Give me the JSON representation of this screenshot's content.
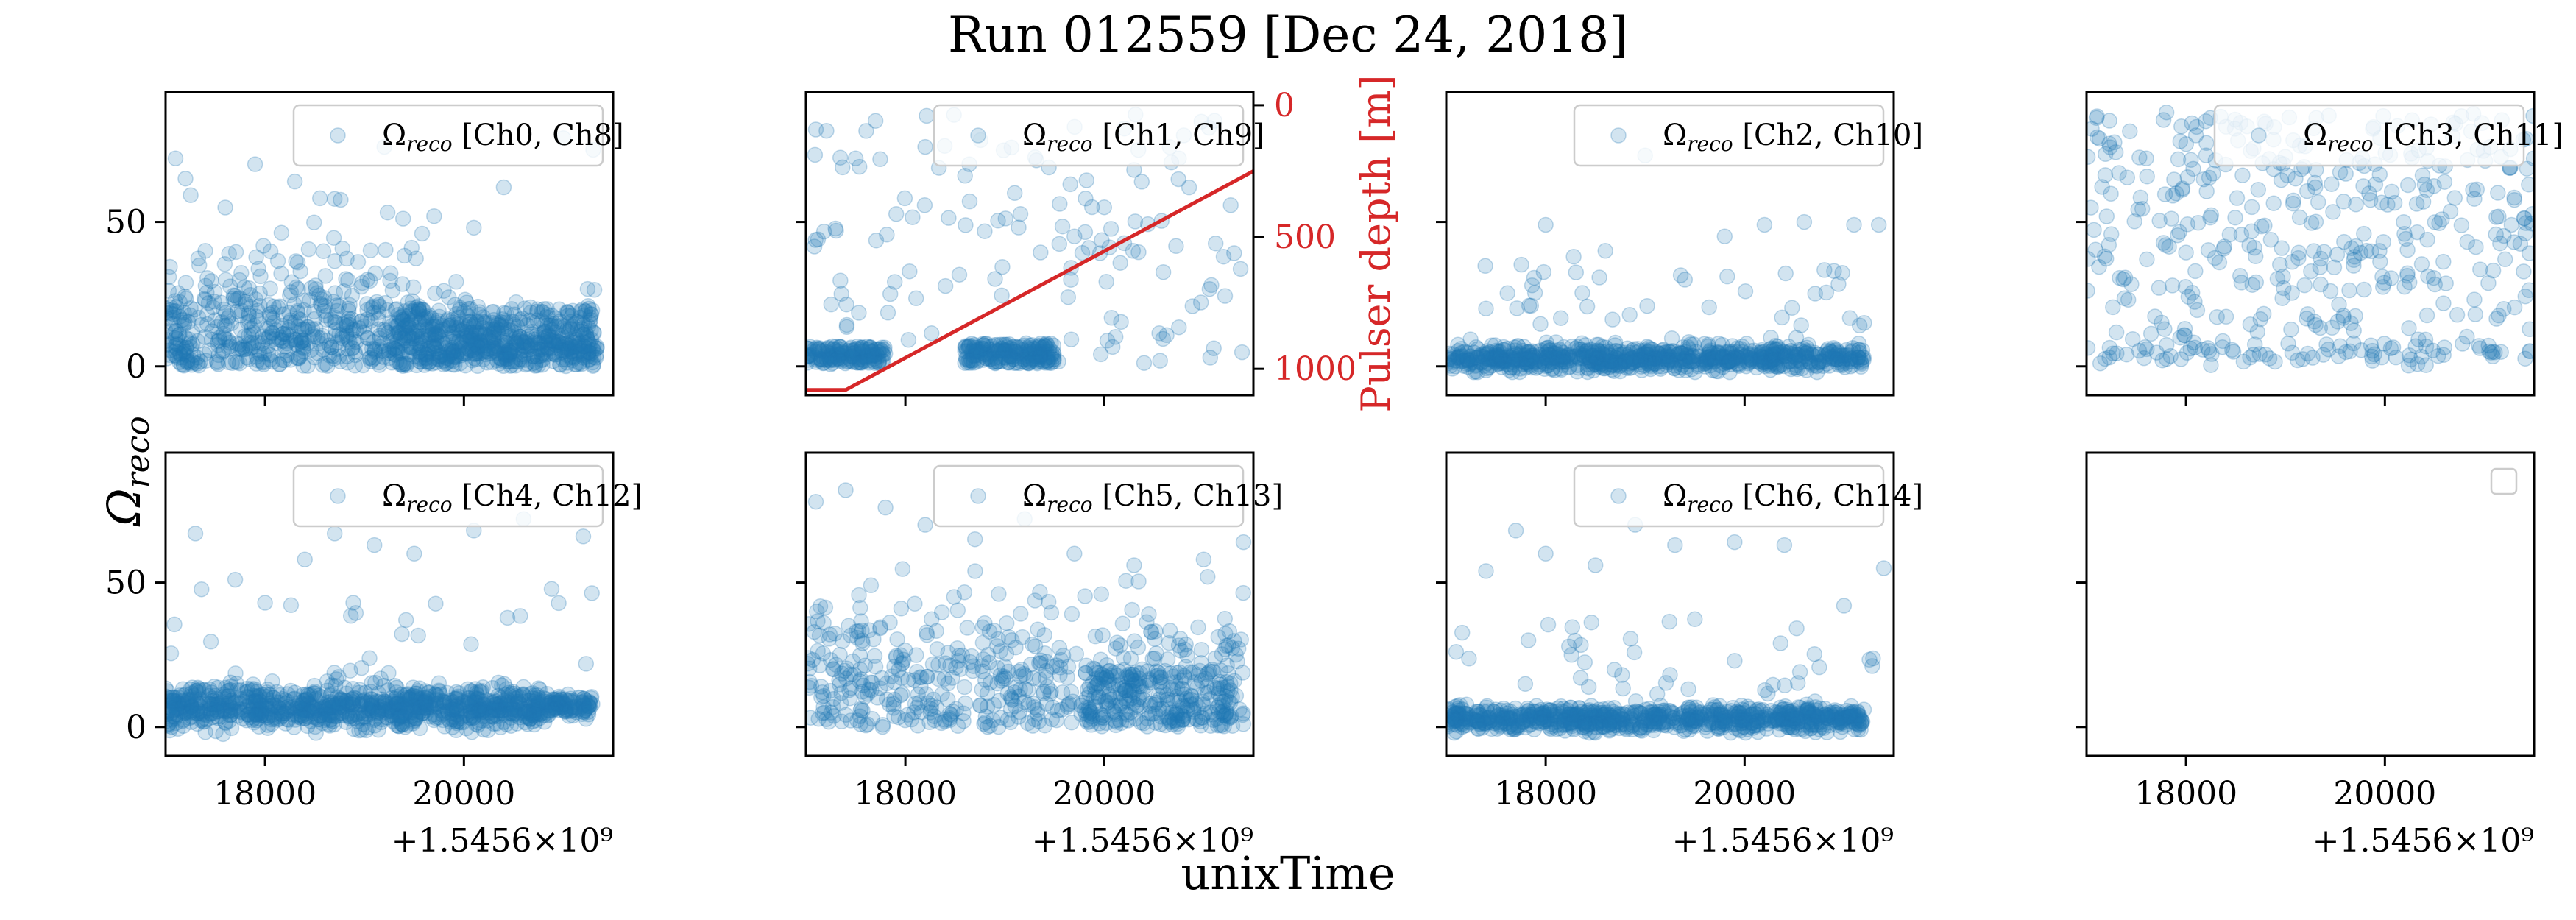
{
  "chart_data": {
    "type": "scatter",
    "title": "Run 012559 [Dec 24, 2018]",
    "xlabel": "unixTime",
    "ylabel": "Ω_reco",
    "x_offset_label": "+1.5456×10⁹",
    "x_offset": 1545600000,
    "xlim": [
      17000,
      21500
    ],
    "ylim": [
      -10,
      95
    ],
    "xticks": [
      18000,
      20000
    ],
    "yticks": [
      0,
      50
    ],
    "series_color": "#1f77b4",
    "point_alpha": 0.2,
    "pulser_color": "#d62728",
    "panels": [
      {
        "legend": "Ω_reco [Ch0, Ch8]",
        "x_tick_labels": false,
        "y_tick_labels": true,
        "pattern": "dense_then_low",
        "points": [
          [
            17100,
            72
          ],
          [
            17200,
            65
          ],
          [
            17400,
            40
          ],
          [
            17600,
            55
          ],
          [
            17900,
            70
          ],
          [
            18300,
            64
          ],
          [
            18700,
            58
          ],
          [
            19200,
            76
          ],
          [
            19700,
            52
          ],
          [
            20100,
            48
          ],
          [
            20400,
            62
          ],
          [
            21000,
            79
          ],
          [
            21300,
            75
          ]
        ]
      },
      {
        "legend": "Ω_reco [Ch1, Ch9]",
        "x_tick_labels": false,
        "y_tick_labels": false,
        "pattern": "band_with_sparse",
        "right_axis": {
          "label": "Pulser depth [m]",
          "ticks": [
            0,
            500,
            1000
          ],
          "lim": [
            1100,
            -50
          ]
        },
        "pulser_depth": {
          "x": [
            17000,
            17400,
            21500
          ],
          "y": [
            1080,
            1080,
            250
          ]
        },
        "points": [
          [
            17100,
            82
          ],
          [
            17500,
            72
          ],
          [
            17700,
            85
          ],
          [
            18200,
            76
          ],
          [
            18600,
            66
          ],
          [
            19100,
            60
          ],
          [
            19700,
            45
          ],
          [
            20300,
            68
          ],
          [
            20800,
            80
          ],
          [
            21200,
            38
          ]
        ]
      },
      {
        "legend": "Ω_reco [Ch2, Ch10]",
        "x_tick_labels": false,
        "y_tick_labels": false,
        "pattern": "low_band",
        "points": [
          [
            17400,
            20
          ],
          [
            18000,
            49
          ],
          [
            18600,
            40
          ],
          [
            19000,
            73
          ],
          [
            19400,
            30
          ],
          [
            19800,
            45
          ],
          [
            20200,
            49
          ],
          [
            20600,
            50
          ],
          [
            20900,
            33
          ],
          [
            21100,
            49
          ],
          [
            21350,
            49
          ]
        ]
      },
      {
        "legend": "Ω_reco [Ch3, Ch11]",
        "x_tick_labels": false,
        "y_tick_labels": false,
        "pattern": "sparse_wide",
        "points": [
          [
            17100,
            86
          ],
          [
            17600,
            72
          ],
          [
            18100,
            80
          ],
          [
            18800,
            84
          ],
          [
            19300,
            62
          ],
          [
            19900,
            70
          ],
          [
            20400,
            63
          ],
          [
            20900,
            58
          ],
          [
            21300,
            43
          ]
        ]
      },
      {
        "legend": "Ω_reco [Ch4, Ch12]",
        "x_tick_labels": true,
        "y_tick_labels": true,
        "pattern": "low_band_wide",
        "points": [
          [
            17300,
            67
          ],
          [
            17700,
            51
          ],
          [
            18000,
            43
          ],
          [
            18400,
            58
          ],
          [
            18700,
            67
          ],
          [
            19100,
            63
          ],
          [
            19500,
            60
          ],
          [
            20100,
            68
          ],
          [
            20600,
            72
          ],
          [
            21200,
            66
          ]
        ]
      },
      {
        "legend": "Ω_reco [Ch5, Ch13]",
        "x_tick_labels": true,
        "y_tick_labels": false,
        "pattern": "medium_spread",
        "points": [
          [
            17100,
            78
          ],
          [
            17400,
            82
          ],
          [
            17800,
            76
          ],
          [
            18200,
            70
          ],
          [
            18700,
            65
          ],
          [
            19200,
            72
          ],
          [
            19700,
            60
          ],
          [
            20300,
            56
          ],
          [
            21000,
            58
          ],
          [
            21400,
            64
          ]
        ]
      },
      {
        "legend": "Ω_reco [Ch6, Ch14]",
        "x_tick_labels": true,
        "y_tick_labels": false,
        "pattern": "low_band",
        "points": [
          [
            17100,
            26
          ],
          [
            17400,
            54
          ],
          [
            17700,
            68
          ],
          [
            18000,
            60
          ],
          [
            18500,
            56
          ],
          [
            18900,
            70
          ],
          [
            19300,
            63
          ],
          [
            19900,
            64
          ],
          [
            20400,
            63
          ],
          [
            21000,
            42
          ],
          [
            21400,
            55
          ]
        ]
      },
      {
        "legend": "",
        "x_tick_labels": true,
        "y_tick_labels": false,
        "pattern": "empty",
        "points": []
      }
    ]
  }
}
